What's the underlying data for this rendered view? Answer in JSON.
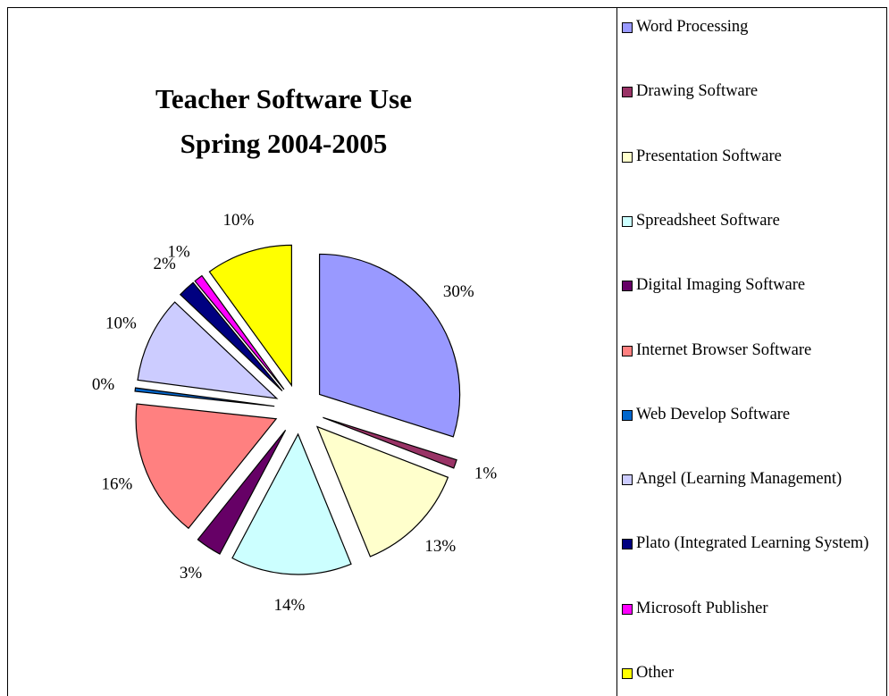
{
  "chart_data": {
    "type": "pie",
    "title": "Teacher Software Use Spring 2004-2005",
    "categories": [
      "Word Processing",
      "Drawing Software",
      "Presentation Software",
      "Spreadsheet Software",
      "Digital Imaging Software",
      "Internet Browser Software",
      "Web Develop Software",
      "Angel (Learning Management)",
      "Plato (Integrated Learning System)",
      "Microsoft Publisher",
      "Other"
    ],
    "values": [
      30,
      1,
      13,
      14,
      3,
      16,
      0.4,
      10,
      2,
      1,
      10
    ],
    "value_labels": [
      "30%",
      "1%",
      "13%",
      "14%",
      "3%",
      "16%",
      "0%",
      "10%",
      "2%",
      "1%",
      "10%"
    ],
    "colors": [
      "#9999ff",
      "#993366",
      "#ffffcc",
      "#ccffff",
      "#660066",
      "#ff8080",
      "#0066cc",
      "#ccccff",
      "#000080",
      "#ff00ff",
      "#ffff00"
    ],
    "legend": "right",
    "exploded": true
  }
}
